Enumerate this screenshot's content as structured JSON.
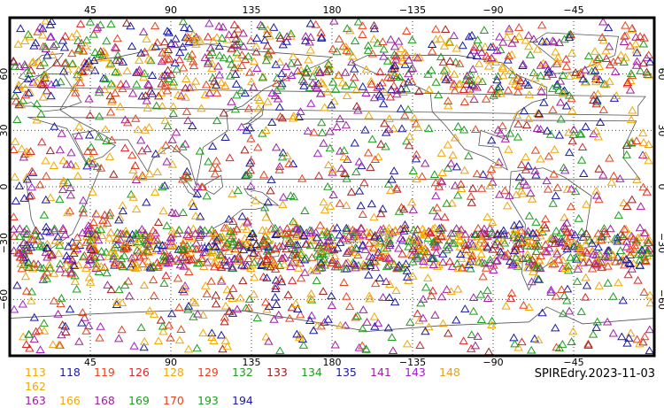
{
  "map": {
    "projection": "cylindrical-equidistant",
    "top_lon_labels": [
      "45",
      "90",
      "135",
      "180",
      "−135",
      "−90",
      "−45"
    ],
    "bottom_lon_labels": [
      "45",
      "90",
      "135",
      "180",
      "−135",
      "−90",
      "−45"
    ],
    "left_lat_labels": [
      "60",
      "30",
      "0",
      "−30",
      "−60"
    ],
    "right_lat_labels": [
      "60",
      "30",
      "0",
      "−30",
      "−60"
    ],
    "lon_range": [
      0,
      360
    ],
    "lat_range": [
      -90,
      90
    ],
    "gridlines": "dotted",
    "marker": "triangle-outline"
  },
  "legend": {
    "items": [
      {
        "label": "113",
        "color": "#f2a900"
      },
      {
        "label": "118",
        "color": "#1a1aa6"
      },
      {
        "label": "119",
        "color": "#e8421e"
      },
      {
        "label": "126",
        "color": "#d9282b"
      },
      {
        "label": "128",
        "color": "#f2a900"
      },
      {
        "label": "129",
        "color": "#e8421e"
      },
      {
        "label": "132",
        "color": "#1e9e1e"
      },
      {
        "label": "133",
        "color": "#a0201e"
      },
      {
        "label": "134",
        "color": "#1e9e1e"
      },
      {
        "label": "135",
        "color": "#1a1aa6"
      },
      {
        "label": "141",
        "color": "#a020a0"
      },
      {
        "label": "143",
        "color": "#a020c8"
      },
      {
        "label": "148",
        "color": "#e8a020"
      },
      {
        "label": "162",
        "color": "#f2a900"
      },
      {
        "label": "163",
        "color": "#a020a0"
      },
      {
        "label": "166",
        "color": "#f2a900"
      },
      {
        "label": "168",
        "color": "#a020a0"
      },
      {
        "label": "169",
        "color": "#1e9e1e"
      },
      {
        "label": "170",
        "color": "#e8421e"
      },
      {
        "label": "193",
        "color": "#1e9e1e"
      },
      {
        "label": "194",
        "color": "#1a1aa6"
      }
    ]
  },
  "stamp": "SPIREdry.2023-11-03"
}
